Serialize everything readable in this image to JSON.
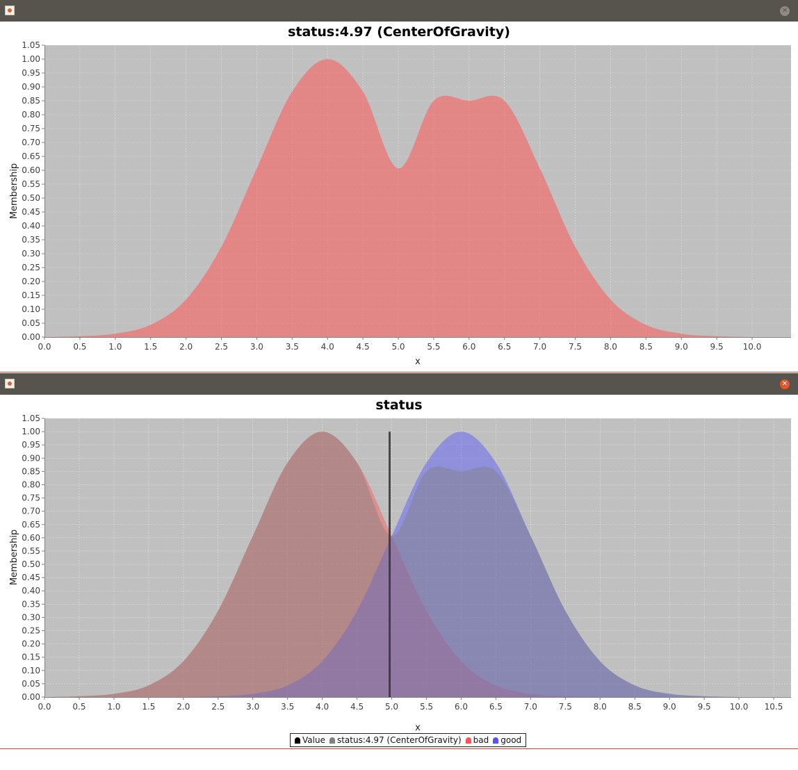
{
  "windows": [
    {
      "chart_title": "status:4.97 (CenterOfGravity)",
      "close_icon": "close-icon",
      "app_icon": "java-app-icon"
    },
    {
      "chart_title": "status",
      "close_icon": "close-icon",
      "app_icon": "java-app-icon"
    }
  ],
  "colors": {
    "plot_bg": "#c0c0c0",
    "bad": "#ff5555",
    "good": "#5555ff",
    "value": "#000000",
    "output": "#808080"
  },
  "chart_data": [
    {
      "type": "area",
      "title": "status:4.97 (CenterOfGravity)",
      "xlabel": "x",
      "ylabel": "Membership",
      "xlim": [
        0.0,
        10.55
      ],
      "ylim": [
        0.0,
        1.05
      ],
      "x_ticks": [
        "0.0",
        "0.5",
        "1.0",
        "1.5",
        "2.0",
        "2.5",
        "3.0",
        "3.5",
        "4.0",
        "4.5",
        "5.0",
        "5.5",
        "6.0",
        "6.5",
        "7.0",
        "7.5",
        "8.0",
        "8.5",
        "9.0",
        "9.5",
        "10.0"
      ],
      "y_ticks": [
        "0.00",
        "0.05",
        "0.10",
        "0.15",
        "0.20",
        "0.25",
        "0.30",
        "0.35",
        "0.40",
        "0.45",
        "0.50",
        "0.55",
        "0.60",
        "0.65",
        "0.70",
        "0.75",
        "0.80",
        "0.85",
        "0.90",
        "0.95",
        "1.00",
        "1.05"
      ],
      "grid": true,
      "series": [
        {
          "name": "status:4.97 (CenterOfGravity)",
          "color": "#ff5555",
          "x": [
            0.0,
            0.5,
            1.0,
            1.5,
            2.0,
            2.5,
            3.0,
            3.5,
            4.0,
            4.5,
            5.0,
            5.5,
            6.0,
            6.5,
            7.0,
            7.5,
            8.0,
            8.5,
            9.0,
            9.5,
            10.0
          ],
          "y": [
            0.0,
            0.003,
            0.012,
            0.044,
            0.135,
            0.325,
            0.607,
            0.883,
            1.0,
            0.883,
            0.607,
            0.85,
            0.85,
            0.85,
            0.607,
            0.325,
            0.135,
            0.044,
            0.012,
            0.003,
            0.0
          ]
        }
      ]
    },
    {
      "type": "area",
      "title": "status",
      "xlabel": "x",
      "ylabel": "Membership",
      "xlim": [
        0.0,
        10.75
      ],
      "ylim": [
        0.0,
        1.05
      ],
      "x_ticks": [
        "0.0",
        "0.5",
        "1.0",
        "1.5",
        "2.0",
        "2.5",
        "3.0",
        "3.5",
        "4.0",
        "4.5",
        "5.0",
        "5.5",
        "6.0",
        "6.5",
        "7.0",
        "7.5",
        "8.0",
        "8.5",
        "9.0",
        "9.5",
        "10.0",
        "10.5"
      ],
      "y_ticks": [
        "0.00",
        "0.05",
        "0.10",
        "0.15",
        "0.20",
        "0.25",
        "0.30",
        "0.35",
        "0.40",
        "0.45",
        "0.50",
        "0.55",
        "0.60",
        "0.65",
        "0.70",
        "0.75",
        "0.80",
        "0.85",
        "0.90",
        "0.95",
        "1.00",
        "1.05"
      ],
      "grid": true,
      "legend": [
        "Value",
        "status:4.97 (CenterOfGravity)",
        "bad",
        "good"
      ],
      "legend_position": "bottom",
      "series": [
        {
          "name": "bad",
          "color": "#ff5555",
          "x": [
            0.0,
            0.5,
            1.0,
            1.5,
            2.0,
            2.5,
            3.0,
            3.5,
            4.0,
            4.5,
            5.0,
            5.5,
            6.0,
            6.5,
            7.0,
            7.5,
            8.0,
            8.5,
            9.0,
            9.5,
            10.0
          ],
          "y": [
            0.0,
            0.003,
            0.012,
            0.044,
            0.135,
            0.325,
            0.607,
            0.883,
            1.0,
            0.883,
            0.607,
            0.325,
            0.135,
            0.044,
            0.012,
            0.003,
            0.0,
            0.0,
            0.0,
            0.0,
            0.0
          ]
        },
        {
          "name": "good",
          "color": "#5555ff",
          "x": [
            0.0,
            0.5,
            1.0,
            1.5,
            2.0,
            2.5,
            3.0,
            3.5,
            4.0,
            4.5,
            5.0,
            5.5,
            6.0,
            6.5,
            7.0,
            7.5,
            8.0,
            8.5,
            9.0,
            9.5,
            10.0
          ],
          "y": [
            0.0,
            0.0,
            0.0,
            0.0,
            0.0,
            0.003,
            0.012,
            0.044,
            0.135,
            0.325,
            0.607,
            0.883,
            1.0,
            0.883,
            0.607,
            0.325,
            0.135,
            0.044,
            0.012,
            0.003,
            0.0
          ]
        },
        {
          "name": "status:4.97 (CenterOfGravity)",
          "color": "#808080",
          "x": [
            0.0,
            0.5,
            1.0,
            1.5,
            2.0,
            2.5,
            3.0,
            3.5,
            4.0,
            4.5,
            5.0,
            5.5,
            6.0,
            6.5,
            7.0,
            7.5,
            8.0,
            8.5,
            9.0,
            9.5,
            10.0
          ],
          "y": [
            0.0,
            0.003,
            0.012,
            0.044,
            0.135,
            0.325,
            0.607,
            0.883,
            1.0,
            0.883,
            0.607,
            0.85,
            0.85,
            0.85,
            0.607,
            0.325,
            0.135,
            0.044,
            0.012,
            0.003,
            0.0
          ]
        },
        {
          "name": "Value",
          "color": "#000000",
          "x": [
            4.97,
            4.97
          ],
          "y": [
            0.0,
            1.0
          ]
        }
      ]
    }
  ]
}
